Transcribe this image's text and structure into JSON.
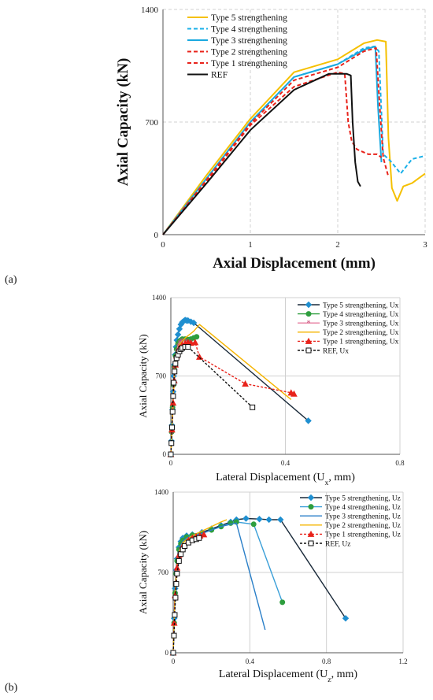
{
  "panel_labels": [
    "(a)",
    "(b)"
  ],
  "chart_data": [
    {
      "type": "line",
      "xlabel": "Axial Displacement (mm)",
      "ylabel": "Axial Capacity (kN)",
      "xlim": [
        0,
        3
      ],
      "ylim": [
        0,
        1400
      ],
      "xticks": [
        0,
        1,
        2,
        3
      ],
      "yticks": [
        0,
        700,
        1400
      ],
      "grid": "vertical and horizontal dashed",
      "legend": "top-left",
      "series": [
        {
          "name": "Type 5 strengthening",
          "color": "#f5c000",
          "style": "solid",
          "marker": "none",
          "x": [
            0,
            0.5,
            1.0,
            1.5,
            2.0,
            2.3,
            2.45,
            2.55,
            2.58,
            2.62,
            2.68,
            2.75,
            2.85,
            3.0
          ],
          "y": [
            0,
            370,
            720,
            1010,
            1090,
            1190,
            1210,
            1200,
            600,
            290,
            210,
            300,
            320,
            380
          ]
        },
        {
          "name": "Type 4 strengthening",
          "color": "#1ab0e8",
          "style": "dashed",
          "marker": "none",
          "x": [
            0,
            0.5,
            1.0,
            1.5,
            2.0,
            2.3,
            2.42,
            2.47,
            2.52,
            2.6,
            2.72,
            2.85,
            3.0
          ],
          "y": [
            0,
            350,
            700,
            980,
            1060,
            1160,
            1170,
            1140,
            500,
            460,
            380,
            470,
            490
          ]
        },
        {
          "name": "Type 3 strengthening",
          "color": "#1aa9e0",
          "style": "solid",
          "marker": "none",
          "x": [
            0,
            0.5,
            1.0,
            1.5,
            2.0,
            2.3,
            2.43,
            2.46,
            2.5
          ],
          "y": [
            0,
            350,
            700,
            980,
            1060,
            1150,
            1170,
            800,
            450
          ]
        },
        {
          "name": "Type 2 strengthening",
          "color": "#e8231b",
          "style": "dashed",
          "marker": "none",
          "x": [
            0,
            0.5,
            1.0,
            1.5,
            2.0,
            2.3,
            2.44,
            2.48,
            2.52,
            2.58
          ],
          "y": [
            0,
            340,
            690,
            960,
            1040,
            1140,
            1160,
            800,
            480,
            360
          ]
        },
        {
          "name": "Type 1 strengthening",
          "color": "#e8231b",
          "style": "dashed",
          "marker": "none",
          "x": [
            0,
            0.5,
            1.0,
            1.5,
            2.0,
            2.08,
            2.12,
            2.16,
            2.22,
            2.35,
            2.45,
            2.5
          ],
          "y": [
            0,
            330,
            680,
            920,
            1010,
            1000,
            700,
            580,
            530,
            500,
            500,
            480
          ]
        },
        {
          "name": "REF",
          "color": "#111111",
          "style": "solid",
          "marker": "none",
          "x": [
            0,
            0.5,
            1.0,
            1.5,
            1.9,
            2.1,
            2.15,
            2.17,
            2.2,
            2.23,
            2.26
          ],
          "y": [
            0,
            320,
            650,
            900,
            1000,
            1000,
            990,
            700,
            450,
            330,
            300
          ]
        }
      ]
    },
    {
      "type": "line",
      "xlabel": "Lateral Displacement (U",
      "xlabel_sub": "x",
      "xlabel_tail": ", mm)",
      "ylabel": "Axial Capacity (kN)",
      "xlim": [
        0,
        0.8
      ],
      "ylim": [
        0,
        1400
      ],
      "xticks": [
        0,
        0.4,
        0.8
      ],
      "yticks": [
        0,
        700,
        1400
      ],
      "grid": "vertical and horizontal",
      "legend": "top-right",
      "series": [
        {
          "name": "Type 5 strengthening, Ux",
          "color": "#1a2a3a",
          "marker": "diamond",
          "marker_color": "#1f8fd0",
          "style": "solid",
          "x": [
            0,
            0.002,
            0.004,
            0.006,
            0.008,
            0.01,
            0.012,
            0.015,
            0.018,
            0.021,
            0.025,
            0.03,
            0.035,
            0.04,
            0.045,
            0.05,
            0.055,
            0.06,
            0.07,
            0.08,
            0.48
          ],
          "y": [
            0,
            120,
            260,
            400,
            560,
            700,
            800,
            890,
            960,
            1020,
            1070,
            1120,
            1160,
            1180,
            1190,
            1200,
            1195,
            1195,
            1185,
            1175,
            300
          ]
        },
        {
          "name": "Type 4 strengthening, Ux",
          "color": "#2e9e3e",
          "marker": "circle",
          "marker_color": "#2e9e3e",
          "style": "solid",
          "x": [
            0,
            0.003,
            0.006,
            0.009,
            0.012,
            0.016,
            0.02,
            0.025,
            0.03,
            0.035,
            0.04,
            0.05,
            0.06,
            0.07,
            0.08,
            0.09
          ],
          "y": [
            0,
            200,
            420,
            620,
            780,
            880,
            940,
            990,
            1010,
            1020,
            1030,
            1030,
            1025,
            1030,
            1040,
            1050
          ]
        },
        {
          "name": "Type 3 strengthening, Ux",
          "color": "#e77fa0",
          "marker": "star",
          "marker_color": "#c8507a",
          "style": "solid",
          "x": [
            0,
            0.003,
            0.006,
            0.009,
            0.012,
            0.016,
            0.02,
            0.025,
            0.03,
            0.035,
            0.04,
            0.05,
            0.06,
            0.07
          ],
          "y": [
            0,
            180,
            400,
            600,
            760,
            860,
            920,
            970,
            1000,
            1010,
            1015,
            1010,
            1005,
            1000
          ]
        },
        {
          "name": "Type 2 strengthening, Ux",
          "color": "#f5b400",
          "marker": "none",
          "marker_color": "#f5b400",
          "style": "solid",
          "x": [
            0,
            0.005,
            0.01,
            0.015,
            0.02,
            0.03,
            0.04,
            0.05,
            0.06,
            0.07,
            0.08,
            0.09,
            0.1,
            0.42
          ],
          "y": [
            0,
            300,
            580,
            780,
            900,
            980,
            1010,
            1040,
            1060,
            1080,
            1100,
            1130,
            1160,
            490
          ]
        },
        {
          "name": "Type 1 strengthening, Ux",
          "color": "#e8231b",
          "marker": "triangle",
          "marker_color": "#e8231b",
          "style": "dashed",
          "x": [
            0,
            0.004,
            0.008,
            0.012,
            0.016,
            0.02,
            0.03,
            0.04,
            0.05,
            0.06,
            0.07,
            0.085,
            0.1,
            0.26,
            0.42,
            0.43
          ],
          "y": [
            0,
            220,
            460,
            660,
            800,
            880,
            950,
            980,
            990,
            1000,
            995,
            1000,
            870,
            630,
            550,
            540
          ]
        },
        {
          "name": "REF, Ux",
          "color": "#111111",
          "marker": "square",
          "marker_color": "#ffffff",
          "style": "dashed",
          "x": [
            0,
            0.002,
            0.004,
            0.006,
            0.008,
            0.01,
            0.013,
            0.016,
            0.02,
            0.025,
            0.03,
            0.035,
            0.04,
            0.05,
            0.06,
            0.285
          ],
          "y": [
            0,
            100,
            240,
            380,
            520,
            640,
            740,
            810,
            860,
            890,
            920,
            940,
            950,
            960,
            960,
            420
          ]
        }
      ]
    },
    {
      "type": "line",
      "xlabel": "Lateral Displacement (U",
      "xlabel_sub": "z",
      "xlabel_tail": ", mm)",
      "ylabel": "Axial Capacity (kN)",
      "xlim": [
        0,
        1.2
      ],
      "ylim": [
        0,
        1400
      ],
      "xticks": [
        0,
        0.4,
        0.8,
        1.2
      ],
      "yticks": [
        0,
        700,
        1400
      ],
      "grid": "vertical and horizontal",
      "legend": "top-right",
      "series": [
        {
          "name": "Type 5 strengthening, Uz",
          "color": "#1a2a3a",
          "marker": "diamond",
          "marker_color": "#1f8fd0",
          "style": "solid",
          "x": [
            0,
            0.005,
            0.01,
            0.015,
            0.02,
            0.03,
            0.04,
            0.05,
            0.07,
            0.1,
            0.15,
            0.2,
            0.25,
            0.3,
            0.33,
            0.38,
            0.45,
            0.5,
            0.56,
            0.9
          ],
          "y": [
            0,
            300,
            560,
            720,
            820,
            920,
            970,
            1000,
            1020,
            1030,
            1050,
            1080,
            1110,
            1140,
            1160,
            1170,
            1165,
            1160,
            1160,
            300
          ]
        },
        {
          "name": "Type 4 strengthening, Uz",
          "color": "#3a9fd8",
          "marker": "circle",
          "marker_color": "#2e9e3e",
          "style": "solid",
          "x": [
            0,
            0.005,
            0.01,
            0.015,
            0.02,
            0.03,
            0.04,
            0.05,
            0.07,
            0.1,
            0.15,
            0.2,
            0.25,
            0.3,
            0.33,
            0.42,
            0.57
          ],
          "y": [
            0,
            260,
            520,
            690,
            800,
            900,
            950,
            980,
            1010,
            1025,
            1040,
            1070,
            1100,
            1130,
            1140,
            1120,
            440
          ]
        },
        {
          "name": "Type 3 strengthening, Uz",
          "color": "#2a7fc8",
          "marker": "none",
          "marker_color": "#2a7fc8",
          "style": "solid",
          "x": [
            0,
            0.005,
            0.01,
            0.015,
            0.02,
            0.03,
            0.04,
            0.05,
            0.07,
            0.1,
            0.15,
            0.2,
            0.25,
            0.3,
            0.33,
            0.48
          ],
          "y": [
            0,
            250,
            500,
            680,
            790,
            890,
            940,
            970,
            1000,
            1020,
            1040,
            1070,
            1100,
            1120,
            1130,
            200
          ]
        },
        {
          "name": "Type 2 strengthening, Uz",
          "color": "#f5b400",
          "marker": "none",
          "marker_color": "#f5b400",
          "style": "solid",
          "x": [
            0,
            0.005,
            0.01,
            0.02,
            0.03,
            0.05,
            0.08,
            0.1,
            0.15,
            0.2,
            0.25,
            0.28
          ],
          "y": [
            0,
            280,
            540,
            780,
            880,
            960,
            1000,
            1020,
            1060,
            1100,
            1140,
            1160
          ]
        },
        {
          "name": "Type 1 strengthening, Uz",
          "color": "#e8231b",
          "marker": "triangle",
          "marker_color": "#e8231b",
          "style": "dashed",
          "x": [
            0,
            0.005,
            0.01,
            0.02,
            0.03,
            0.05,
            0.08,
            0.1,
            0.12,
            0.14,
            0.16
          ],
          "y": [
            0,
            260,
            500,
            740,
            850,
            930,
            980,
            1000,
            1010,
            1020,
            1030
          ]
        },
        {
          "name": "REF, Uz",
          "color": "#111111",
          "marker": "square",
          "marker_color": "#ffffff",
          "style": "dashed",
          "x": [
            0,
            0.004,
            0.008,
            0.012,
            0.016,
            0.02,
            0.03,
            0.04,
            0.05,
            0.06,
            0.08,
            0.1,
            0.12,
            0.135
          ],
          "y": [
            0,
            150,
            330,
            480,
            600,
            690,
            800,
            860,
            900,
            930,
            960,
            980,
            990,
            1000
          ]
        }
      ]
    }
  ]
}
